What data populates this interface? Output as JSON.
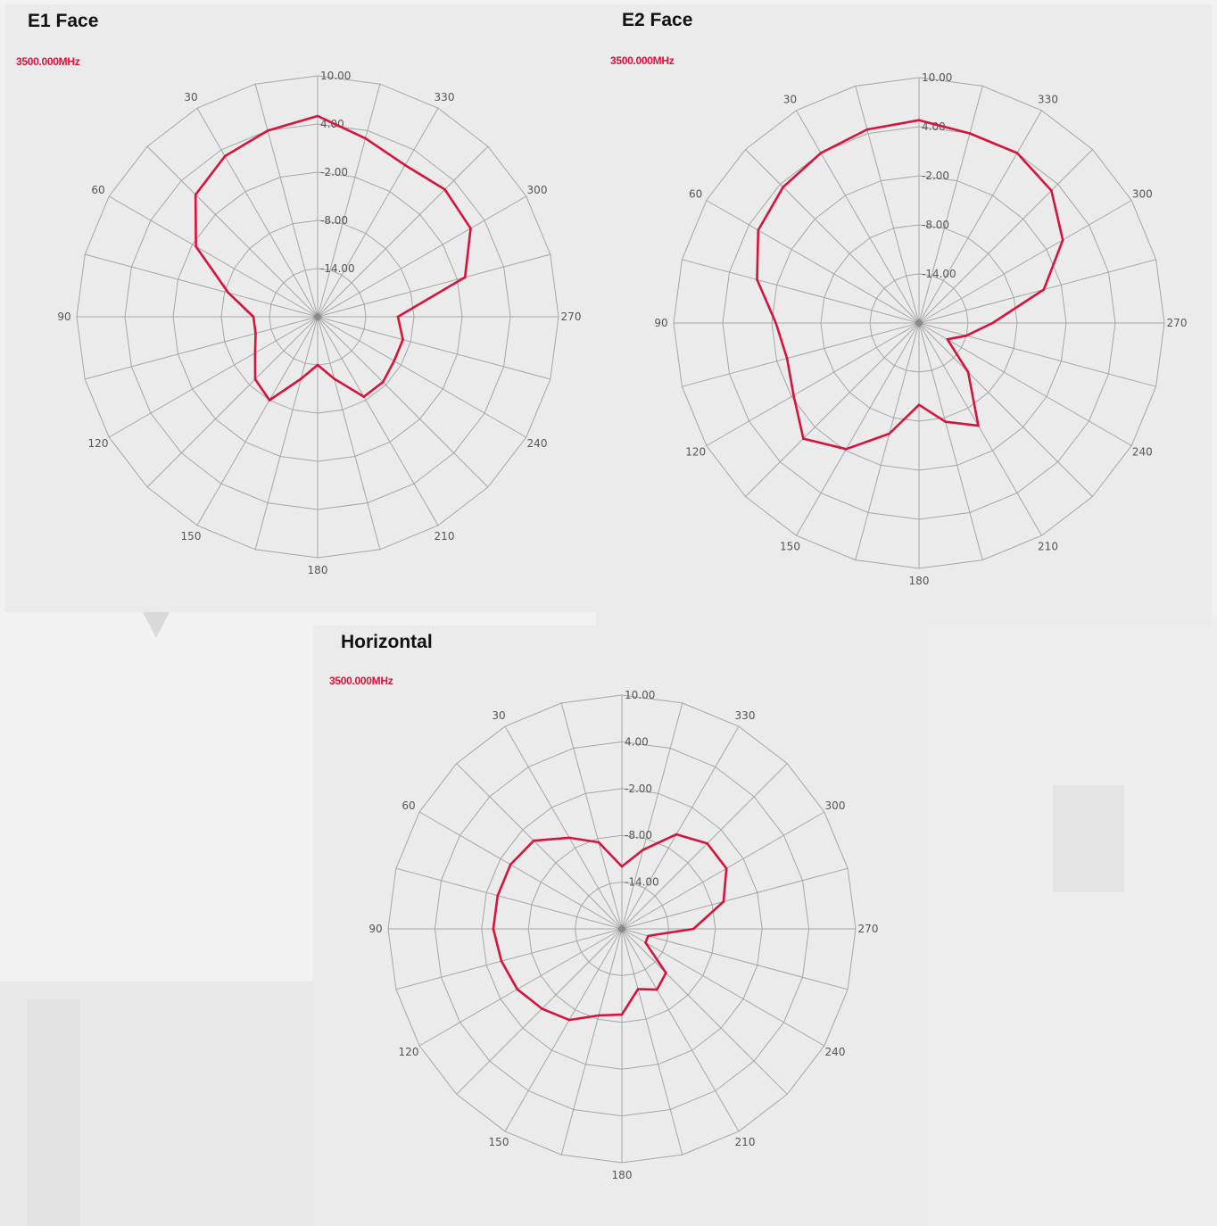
{
  "chart_data": [
    {
      "type": "line",
      "subtype": "polar",
      "title": "E1 Face",
      "frequency_label": "3500.000MHz",
      "radial_tick_labels": [
        "10.00",
        "4.00",
        "-2.00",
        "-8.00",
        "-14.00"
      ],
      "radial_range": [
        -20,
        10
      ],
      "angle_labels": [
        "30",
        "60",
        "90",
        "120",
        "150",
        "180",
        "210",
        "240",
        "270",
        "300",
        "330"
      ],
      "angle_direction": "counterclockwise from top",
      "series": [
        {
          "color": "#d6133c",
          "angles": [
            0,
            15,
            30,
            45,
            60,
            75,
            90,
            105,
            120,
            135,
            150,
            165,
            180,
            195,
            210,
            225,
            240,
            255,
            270,
            285,
            300,
            315,
            330,
            345
          ],
          "values": [
            5.0,
            4.0,
            3.1,
            1.5,
            -2.5,
            -8.5,
            -12.0,
            -12.0,
            -11.0,
            -9.0,
            -8.0,
            -12.0,
            -14.0,
            -12.0,
            -8.5,
            -8.5,
            -9.0,
            -9.0,
            -10.0,
            -1.0,
            2.0,
            2.4,
            1.8,
            3.0
          ]
        }
      ]
    },
    {
      "type": "line",
      "subtype": "polar",
      "title": "E2 Face",
      "frequency_label": "3500.000MHz",
      "radial_tick_labels": [
        "10.00",
        "4.00",
        "-2.00",
        "-8.00",
        "-14.00"
      ],
      "radial_range": [
        -20,
        10
      ],
      "angle_labels": [
        "30",
        "60",
        "90",
        "120",
        "150",
        "180",
        "210",
        "240",
        "270",
        "300",
        "330"
      ],
      "angle_direction": "counterclockwise from top",
      "series": [
        {
          "color": "#d6133c",
          "angles": [
            0,
            15,
            30,
            45,
            60,
            75,
            90,
            105,
            120,
            135,
            150,
            165,
            180,
            195,
            210,
            225,
            240,
            255,
            270,
            285,
            300,
            315,
            330,
            345
          ],
          "values": [
            4.8,
            4.5,
            4.0,
            3.5,
            2.7,
            0.5,
            -2.5,
            -3.3,
            -2.3,
            0.0,
            -2.2,
            -6.0,
            -10.0,
            -7.5,
            -5.5,
            -11.5,
            -16.0,
            -14.0,
            -11.0,
            -4.2,
            0.3,
            2.9,
            4.0,
            4.0
          ]
        }
      ]
    },
    {
      "type": "line",
      "subtype": "polar",
      "title": "Horizontal",
      "frequency_label": "3500.000MHz",
      "radial_tick_labels": [
        "10.00",
        "4.00",
        "-2.00",
        "-8.00",
        "-14.00"
      ],
      "radial_range": [
        -20,
        10
      ],
      "angle_labels": [
        "30",
        "60",
        "90",
        "120",
        "150",
        "180",
        "210",
        "240",
        "270",
        "300",
        "330"
      ],
      "angle_direction": "counterclockwise from top",
      "series": [
        {
          "color": "#d6133c",
          "angles": [
            0,
            15,
            30,
            45,
            60,
            75,
            90,
            105,
            120,
            135,
            150,
            165,
            180,
            195,
            210,
            225,
            240,
            255,
            270,
            285,
            300,
            315,
            330,
            345
          ],
          "values": [
            -12.0,
            -8.5,
            -6.5,
            -4.0,
            -3.5,
            -3.5,
            -3.5,
            -4.0,
            -4.5,
            -5.5,
            -6.5,
            -8.5,
            -9.0,
            -12.0,
            -11.0,
            -12.0,
            -16.5,
            -16.5,
            -10.8,
            -6.5,
            -4.5,
            -4.5,
            -6.0,
            -9.5
          ]
        }
      ]
    }
  ]
}
